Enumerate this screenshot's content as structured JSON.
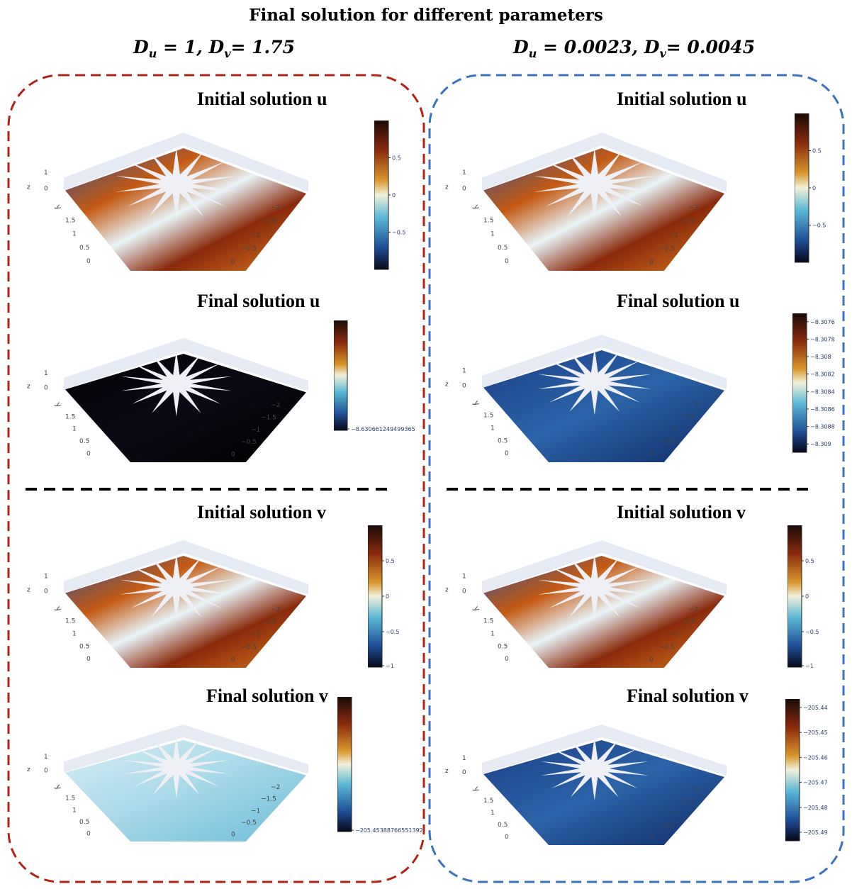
{
  "title": "Final solution for different parameters",
  "columns": [
    {
      "border_color": "#b02418",
      "param": {
        "u_sub": "u",
        "u_val": "1",
        "v_sub": "v",
        "v_val": "1.75"
      },
      "panels": [
        {
          "title": "Initial solution u",
          "kind": "initial_u",
          "colorbar_ticks": [
            "0.5",
            "0",
            "−0.5"
          ],
          "fill": "initial"
        },
        {
          "title": "Final solution u",
          "kind": "final_u",
          "colorbar_ticks": [
            "−8.630661249499365"
          ],
          "fill": "dark"
        },
        {
          "title": "Initial solution v",
          "kind": "initial_v",
          "colorbar_ticks": [
            "0.5",
            "0",
            "−0.5",
            "−1"
          ],
          "fill": "initial"
        },
        {
          "title": "Final solution v",
          "kind": "final_v",
          "colorbar_ticks": [
            "−205.45388766551392"
          ],
          "fill": "light"
        }
      ]
    },
    {
      "border_color": "#3a72bd",
      "param": {
        "u_sub": "u",
        "u_val": "0.0023",
        "v_sub": "v",
        "v_val": "0.0045"
      },
      "panels": [
        {
          "title": "Initial solution u",
          "kind": "initial_u",
          "colorbar_ticks": [
            "0.5",
            "0",
            "−0.5"
          ],
          "fill": "initial"
        },
        {
          "title": "Final solution u",
          "kind": "final_u",
          "colorbar_ticks": [
            "−8.3076",
            "−8.3078",
            "−8.308",
            "−8.3082",
            "−8.3084",
            "−8.3086",
            "−8.3088",
            "−8.309"
          ],
          "fill": "blue"
        },
        {
          "title": "Initial solution v",
          "kind": "initial_v",
          "colorbar_ticks": [
            "0.5",
            "0",
            "−0.5",
            "−1"
          ],
          "fill": "initial"
        },
        {
          "title": "Final solution v",
          "kind": "final_v",
          "colorbar_ticks": [
            "−205.44",
            "−205.45",
            "−205.46",
            "−205.47",
            "−205.48",
            "−205.49"
          ],
          "fill": "blue"
        }
      ]
    }
  ],
  "axes": {
    "z_label": "z",
    "y_label": "y",
    "z_ticks": [
      "1",
      "0"
    ],
    "y_ticks": [
      "1.5",
      "1",
      "0.5",
      "0"
    ],
    "x_ticks": [
      "−2",
      "−1.5",
      "−1",
      "−0.5",
      "0"
    ]
  }
}
